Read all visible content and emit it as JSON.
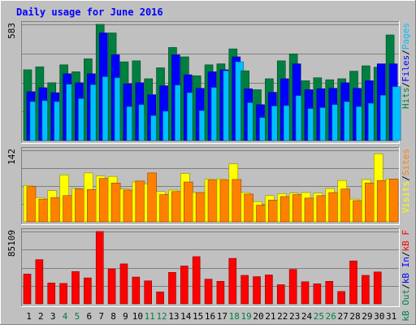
{
  "chart_data": [
    {
      "type": "bar",
      "title": "Daily usage for June 2016",
      "ymax_label": "583",
      "ylim": [
        0,
        583
      ],
      "categories": [
        "1",
        "2",
        "3",
        "4",
        "5",
        "6",
        "7",
        "8",
        "9",
        "10",
        "11",
        "12",
        "13",
        "14",
        "15",
        "16",
        "17",
        "18",
        "19",
        "20",
        "21",
        "22",
        "23",
        "24",
        "25",
        "26",
        "27",
        "28",
        "29",
        "30",
        "31"
      ],
      "weekend_days": [
        "4",
        "5",
        "11",
        "12",
        "18",
        "19",
        "25",
        "26"
      ],
      "series": [
        {
          "name": "Hits",
          "color": "#008040",
          "values": [
            355,
            370,
            290,
            380,
            345,
            410,
            583,
            540,
            395,
            400,
            310,
            365,
            467,
            420,
            325,
            380,
            385,
            460,
            350,
            255,
            310,
            400,
            435,
            300,
            315,
            305,
            310,
            348,
            375,
            368,
            530
          ]
        },
        {
          "name": "Files",
          "color": "#0000ff",
          "values": [
            245,
            265,
            240,
            335,
            290,
            335,
            540,
            430,
            285,
            290,
            230,
            275,
            430,
            330,
            262,
            345,
            355,
            420,
            260,
            180,
            242,
            310,
            385,
            255,
            260,
            262,
            290,
            262,
            300,
            385,
            385
          ]
        },
        {
          "name": "Pages",
          "color": "#00bfff",
          "values": [
            195,
            200,
            195,
            282,
            210,
            280,
            320,
            315,
            170,
            180,
            125,
            147,
            278,
            240,
            150,
            266,
            350,
            395,
            190,
            115,
            173,
            175,
            225,
            160,
            165,
            180,
            195,
            170,
            187,
            227,
            270
          ]
        }
      ],
      "axis_labels": [
        {
          "text": "Pages",
          "color": "#00bfff"
        },
        {
          "text": "/",
          "color": "#000000"
        },
        {
          "text": "Files",
          "color": "#0000ff"
        },
        {
          "text": "/",
          "color": "#000000"
        },
        {
          "text": "Hits",
          "color": "#008040"
        }
      ]
    },
    {
      "type": "bar",
      "ymax_label": "142",
      "ylim": [
        0,
        142
      ],
      "categories": [
        "1",
        "2",
        "3",
        "4",
        "5",
        "6",
        "7",
        "8",
        "9",
        "10",
        "11",
        "12",
        "13",
        "14",
        "15",
        "16",
        "17",
        "18",
        "19",
        "20",
        "21",
        "22",
        "23",
        "24",
        "25",
        "26",
        "27",
        "28",
        "29",
        "30",
        "31"
      ],
      "series": [
        {
          "name": "Visits",
          "color": "#ffff00",
          "values": [
            72,
            48,
            62,
            93,
            66,
            97,
            91,
            90,
            65,
            79,
            75,
            60,
            63,
            96,
            58,
            85,
            85,
            115,
            58,
            40,
            52,
            56,
            57,
            58,
            57,
            66,
            82,
            45,
            84,
            135,
            85
          ]
        },
        {
          "name": "Sites",
          "color": "#ff8000",
          "values": [
            70,
            45,
            48,
            52,
            65,
            64,
            86,
            77,
            63,
            81,
            97,
            54,
            60,
            79,
            58,
            83,
            83,
            84,
            55,
            33,
            43,
            50,
            54,
            47,
            52,
            58,
            65,
            42,
            77,
            82,
            85
          ]
        }
      ],
      "axis_labels": [
        {
          "text": "Sites",
          "color": "#ff8000"
        },
        {
          "text": "/",
          "color": "#000000"
        },
        {
          "text": "Visits",
          "color": "#ffff00"
        }
      ]
    },
    {
      "type": "bar",
      "ymax_label": "85109",
      "ylim": [
        0,
        85109
      ],
      "categories": [
        "1",
        "2",
        "3",
        "4",
        "5",
        "6",
        "7",
        "8",
        "9",
        "10",
        "11",
        "12",
        "13",
        "14",
        "15",
        "16",
        "17",
        "18",
        "19",
        "20",
        "21",
        "22",
        "23",
        "24",
        "25",
        "26",
        "27",
        "28",
        "29",
        "30",
        "31"
      ],
      "series": [
        {
          "name": "kB F",
          "color": "#ff0000",
          "values": [
            35000,
            52000,
            24500,
            24000,
            38000,
            30500,
            85109,
            41000,
            47000,
            31500,
            27000,
            14000,
            37000,
            44500,
            55500,
            29000,
            26500,
            53500,
            33500,
            32000,
            34000,
            22500,
            40500,
            26000,
            23500,
            26500,
            14500,
            50500,
            33500,
            37500,
            0
          ]
        }
      ],
      "axis_labels": [
        {
          "text": "kB F",
          "color": "#ff0000"
        },
        {
          "text": "/",
          "color": "#000000"
        },
        {
          "text": "kB In",
          "color": "#0000ff"
        },
        {
          "text": "/",
          "color": "#000000"
        },
        {
          "text": "kB Out",
          "color": "#008040"
        }
      ]
    }
  ]
}
